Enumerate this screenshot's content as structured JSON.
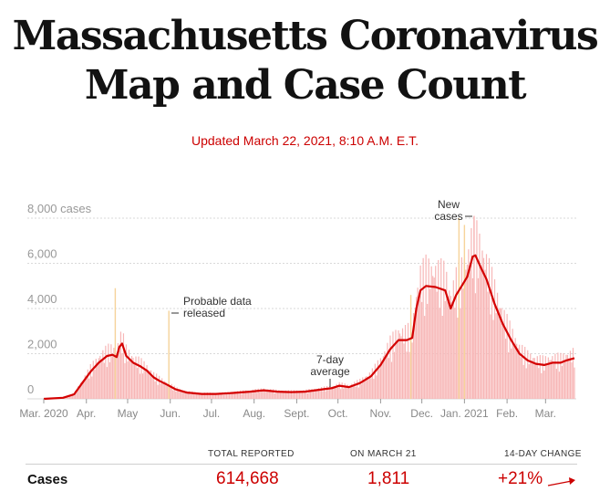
{
  "header": {
    "title_line1": "Massachusetts Coronavirus",
    "title_line2": "Map and Case Count",
    "updated": "Updated March 22, 2021, 8:10 A.M. E.T."
  },
  "colors": {
    "accent": "#cc0000",
    "bar": "#f7b6b6",
    "probable_bar": "#f6d39a",
    "line": "#d40000",
    "grid": "#d9d9d9"
  },
  "chart_data": {
    "type": "bar",
    "ylim": [
      0,
      8000
    ],
    "y_ticks": [
      {
        "value": 8000,
        "label": "8,000 cases"
      },
      {
        "value": 6000,
        "label": "6,000"
      },
      {
        "value": 4000,
        "label": "4,000"
      },
      {
        "value": 2000,
        "label": "2,000"
      },
      {
        "value": 0,
        "label": "0"
      }
    ],
    "x_ticks": [
      {
        "day": 0,
        "label": "Mar. 2020"
      },
      {
        "day": 31,
        "label": "Apr."
      },
      {
        "day": 61,
        "label": "May"
      },
      {
        "day": 92,
        "label": "Jun."
      },
      {
        "day": 122,
        "label": "Jul."
      },
      {
        "day": 153,
        "label": "Aug."
      },
      {
        "day": 184,
        "label": "Sept."
      },
      {
        "day": 214,
        "label": "Oct."
      },
      {
        "day": 245,
        "label": "Nov."
      },
      {
        "day": 275,
        "label": "Dec."
      },
      {
        "day": 306,
        "label": "Jan. 2021"
      },
      {
        "day": 337,
        "label": "Feb."
      },
      {
        "day": 365,
        "label": "Mar."
      }
    ],
    "avg_points": [
      [
        0,
        0
      ],
      [
        14,
        50
      ],
      [
        22,
        200
      ],
      [
        28,
        700
      ],
      [
        34,
        1200
      ],
      [
        40,
        1600
      ],
      [
        46,
        1900
      ],
      [
        50,
        1950
      ],
      [
        53,
        1850
      ],
      [
        55,
        2300
      ],
      [
        57,
        2450
      ],
      [
        60,
        1900
      ],
      [
        65,
        1600
      ],
      [
        70,
        1450
      ],
      [
        75,
        1250
      ],
      [
        80,
        950
      ],
      [
        84,
        800
      ],
      [
        90,
        620
      ],
      [
        96,
        420
      ],
      [
        104,
        280
      ],
      [
        115,
        220
      ],
      [
        125,
        220
      ],
      [
        135,
        250
      ],
      [
        150,
        320
      ],
      [
        160,
        380
      ],
      [
        170,
        320
      ],
      [
        180,
        300
      ],
      [
        190,
        320
      ],
      [
        200,
        400
      ],
      [
        210,
        480
      ],
      [
        215,
        580
      ],
      [
        222,
        520
      ],
      [
        230,
        700
      ],
      [
        238,
        1000
      ],
      [
        245,
        1500
      ],
      [
        252,
        2200
      ],
      [
        258,
        2600
      ],
      [
        264,
        2600
      ],
      [
        268,
        2700
      ],
      [
        271,
        4000
      ],
      [
        274,
        4800
      ],
      [
        278,
        5000
      ],
      [
        285,
        4950
      ],
      [
        292,
        4800
      ],
      [
        296,
        4000
      ],
      [
        300,
        4600
      ],
      [
        304,
        5000
      ],
      [
        308,
        5400
      ],
      [
        312,
        6300
      ],
      [
        314,
        6350
      ],
      [
        318,
        5800
      ],
      [
        322,
        5300
      ],
      [
        328,
        4200
      ],
      [
        334,
        3300
      ],
      [
        340,
        2600
      ],
      [
        346,
        2000
      ],
      [
        352,
        1700
      ],
      [
        358,
        1550
      ],
      [
        364,
        1500
      ],
      [
        370,
        1600
      ],
      [
        376,
        1600
      ],
      [
        380,
        1700
      ],
      [
        386,
        1800
      ]
    ],
    "spikes": [
      {
        "day": 52,
        "value": 4900,
        "kind": "probable"
      },
      {
        "day": 91,
        "value": 3900,
        "kind": "probable"
      },
      {
        "day": 267,
        "value": 4600,
        "kind": "probable"
      },
      {
        "day": 302,
        "value": 8000,
        "kind": "probable"
      },
      {
        "day": 306,
        "value": 7700,
        "kind": "probable"
      },
      {
        "day": 313,
        "value": 8100,
        "kind": "new"
      }
    ],
    "annotations": [
      {
        "id": "probable",
        "text": [
          "Probable data",
          "released"
        ]
      },
      {
        "id": "avg",
        "text": [
          "7-day",
          "average"
        ]
      },
      {
        "id": "new",
        "text": [
          "New",
          "cases"
        ]
      }
    ]
  },
  "stats": {
    "headers": {
      "total": "TOTAL REPORTED",
      "on_date": "ON MARCH 21",
      "change": "14-DAY CHANGE"
    },
    "rows": [
      {
        "label": "Cases",
        "total": "614,668",
        "on_date": "1,811",
        "change": "+21%"
      }
    ]
  }
}
